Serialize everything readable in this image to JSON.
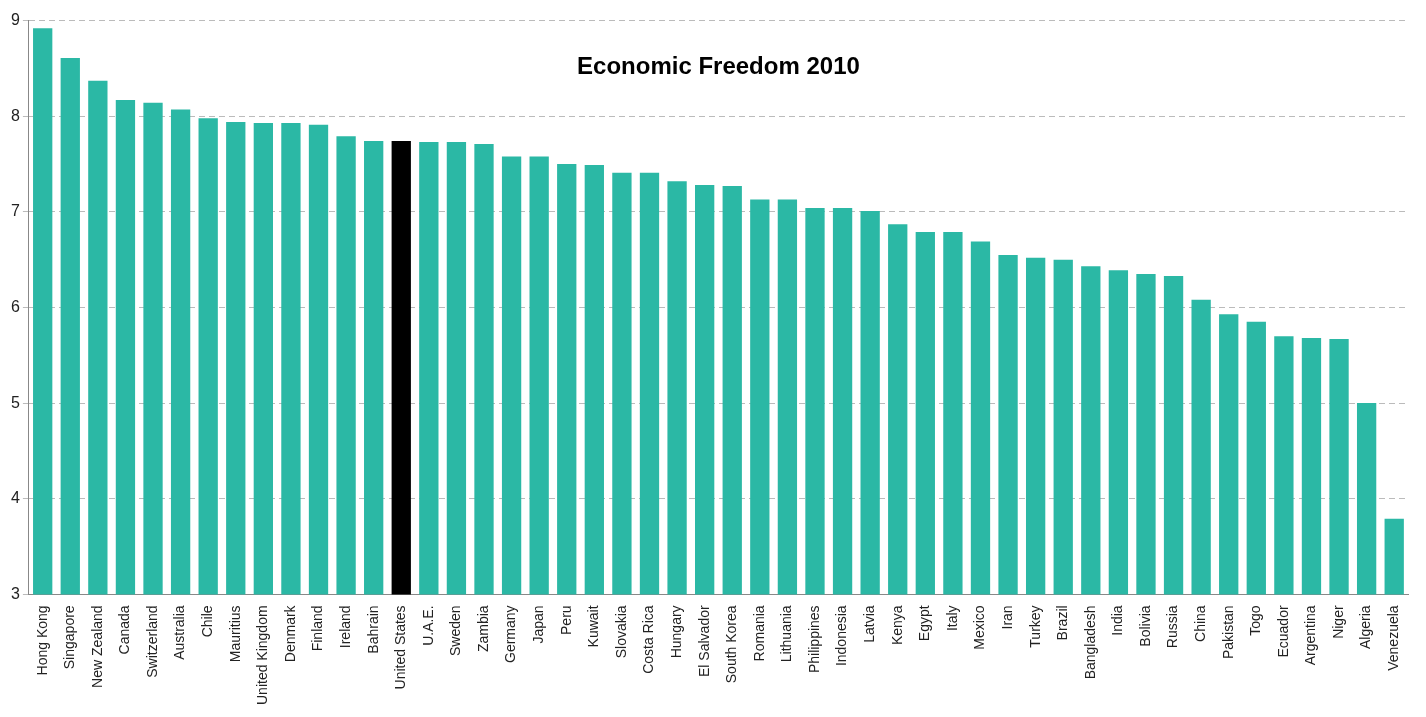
{
  "chart_data": {
    "type": "bar",
    "title": "Economic Freedom 2010",
    "categories": [
      "Hong Kong",
      "Singapore",
      "New Zealand",
      "Canada",
      "Switzerland",
      "Australia",
      "Chile",
      "Mauritius",
      "United Kingdom",
      "Denmark",
      "Finland",
      "Ireland",
      "Bahrain",
      "United States",
      "U.A.E.",
      "Sweden",
      "Zambia",
      "Germany",
      "Japan",
      "Peru",
      "Kuwait",
      "Slovakia",
      "Costa Rica",
      "Hungary",
      "El Salvador",
      "South Korea",
      "Romania",
      "Lithuania",
      "Philippines",
      "Indonesia",
      "Latvia",
      "Kenya",
      "Egypt",
      "Italy",
      "Mexico",
      "Iran",
      "Turkey",
      "Brazil",
      "Bangladesh",
      "India",
      "Bolivia",
      "Russia",
      "China",
      "Pakistan",
      "Togo",
      "Ecuador",
      "Argentina",
      "Niger",
      "Algeria",
      "Venezuela"
    ],
    "values": [
      8.92,
      8.61,
      8.37,
      8.17,
      8.14,
      8.07,
      7.98,
      7.94,
      7.93,
      7.93,
      7.91,
      7.79,
      7.74,
      7.74,
      7.73,
      7.73,
      7.71,
      7.58,
      7.58,
      7.5,
      7.49,
      7.41,
      7.41,
      7.32,
      7.28,
      7.27,
      7.13,
      7.13,
      7.04,
      7.04,
      7.01,
      6.87,
      6.79,
      6.79,
      6.69,
      6.55,
      6.52,
      6.5,
      6.43,
      6.39,
      6.35,
      6.33,
      6.08,
      5.93,
      5.85,
      5.7,
      5.68,
      5.67,
      5.0,
      3.79
    ],
    "colors": [
      "#2bb8a5",
      "#2bb8a5",
      "#2bb8a5",
      "#2bb8a5",
      "#2bb8a5",
      "#2bb8a5",
      "#2bb8a5",
      "#2bb8a5",
      "#2bb8a5",
      "#2bb8a5",
      "#2bb8a5",
      "#2bb8a5",
      "#2bb8a5",
      "#000000",
      "#2bb8a5",
      "#2bb8a5",
      "#2bb8a5",
      "#2bb8a5",
      "#2bb8a5",
      "#2bb8a5",
      "#2bb8a5",
      "#2bb8a5",
      "#2bb8a5",
      "#2bb8a5",
      "#2bb8a5",
      "#2bb8a5",
      "#2bb8a5",
      "#2bb8a5",
      "#2bb8a5",
      "#2bb8a5",
      "#2bb8a5",
      "#2bb8a5",
      "#2bb8a5",
      "#2bb8a5",
      "#2bb8a5",
      "#2bb8a5",
      "#2bb8a5",
      "#2bb8a5",
      "#2bb8a5",
      "#2bb8a5",
      "#2bb8a5",
      "#2bb8a5",
      "#2bb8a5",
      "#2bb8a5",
      "#2bb8a5",
      "#2bb8a5",
      "#2bb8a5",
      "#2bb8a5",
      "#2bb8a5",
      "#2bb8a5"
    ],
    "ylim": [
      3,
      9
    ],
    "yticks": [
      3,
      4,
      5,
      6,
      7,
      8,
      9
    ],
    "grid": "y",
    "legend": false
  }
}
